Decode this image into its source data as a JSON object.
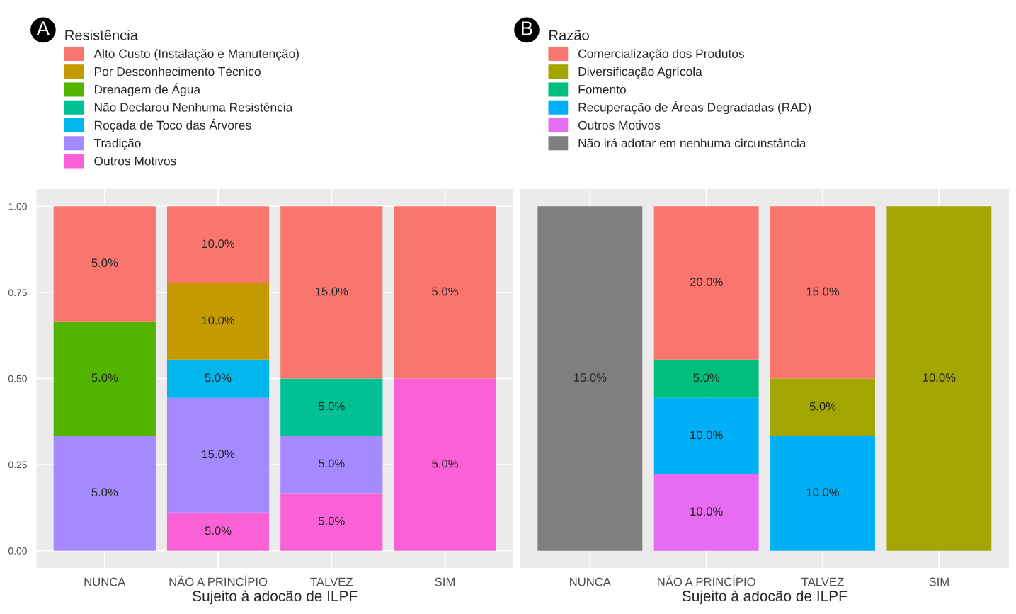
{
  "chart_data": [
    {
      "type": "bar",
      "stacked": true,
      "xlabel": "Sujeito à adocão de ILPF",
      "legend_title": "Resistência",
      "legend": "top left",
      "grid": true,
      "categories": [
        "NUNCA",
        "NÃO A PRINCÍPIO",
        "TALVEZ",
        "SIM"
      ],
      "ylim": [
        -0.05,
        1.05
      ],
      "yticks": [
        {
          "value": 0,
          "label": "0.00"
        },
        {
          "value": 0.25,
          "label": "0.25"
        },
        {
          "value": 0.5,
          "label": "0.50"
        },
        {
          "value": 0.75,
          "label": "0.75"
        },
        {
          "value": 1,
          "label": "1.00"
        }
      ],
      "annotations": [
        "A",
        "5.0%",
        "5.0%",
        "5.0%",
        "5.0%",
        "15.0%",
        "5.0%",
        "5.0%",
        "5.0%",
        "5.0%",
        "10.0%",
        "5.0%",
        "10.0%",
        "15.0%",
        "5.0%"
      ],
      "series": [
        {
          "name": "Outros Motivos",
          "color": "#fb61d7",
          "values": [
            null,
            0.111,
            0.167,
            0.5
          ]
        },
        {
          "name": "Tradição",
          "color": "#a58aff",
          "values": [
            0.333,
            0.333,
            0.167,
            null
          ]
        },
        {
          "name": "Roçada de Toco das Árvores",
          "color": "#00b6eb",
          "values": [
            null,
            0.111,
            null,
            null
          ]
        },
        {
          "name": "Não Declarou Nenhuma Resistência",
          "color": "#00c094",
          "values": [
            null,
            null,
            0.166,
            null
          ]
        },
        {
          "name": "Drenagem de Água",
          "color": "#53b400",
          "values": [
            0.333,
            null,
            null,
            null
          ]
        },
        {
          "name": "Por Desconhecimento Técnico",
          "color": "#c49a00",
          "values": [
            null,
            0.222,
            null,
            null
          ]
        },
        {
          "name": "Alto Custo (Instalação e Manutenção)",
          "color": "#f8766d",
          "values": [
            0.334,
            0.223,
            0.5,
            0.5
          ]
        }
      ]
    },
    {
      "type": "bar",
      "stacked": true,
      "xlabel": "Sujeito à adocão de ILPF",
      "legend_title": "Razão",
      "legend": "top left",
      "grid": true,
      "tick_labels": "x",
      "categories": [
        "NUNCA",
        "NÃO A PRINCÍPIO",
        "TALVEZ",
        "SIM"
      ],
      "ylim": [
        -0.05,
        1.05
      ],
      "annotations": [
        "B",
        "15.0%",
        "10.0%",
        "10.0%",
        "10.0%",
        "5.0%",
        "5.0%",
        "10.0%",
        "20.0%",
        "15.0%"
      ],
      "series": [
        {
          "name": "Não irá adotar em nenhuma circunstância",
          "color": "#7f7f7f",
          "values": [
            1.0,
            null,
            null,
            null
          ]
        },
        {
          "name": "Outros Motivos",
          "color": "#e76bf3",
          "values": [
            null,
            0.222,
            null,
            null
          ]
        },
        {
          "name": "Recuperação de Áreas Degradadas (RAD)",
          "color": "#00b0f6",
          "values": [
            null,
            0.222,
            0.333,
            null
          ]
        },
        {
          "name": "Fomento",
          "color": "#00bf7d",
          "values": [
            null,
            0.111,
            null,
            null
          ]
        },
        {
          "name": "Diversificação Agrícola",
          "color": "#a3a500",
          "values": [
            null,
            null,
            0.167,
            1.0
          ]
        },
        {
          "name": "Comercialização dos Produtos",
          "color": "#f8766d",
          "values": [
            null,
            0.445,
            0.5,
            null
          ]
        }
      ]
    }
  ]
}
